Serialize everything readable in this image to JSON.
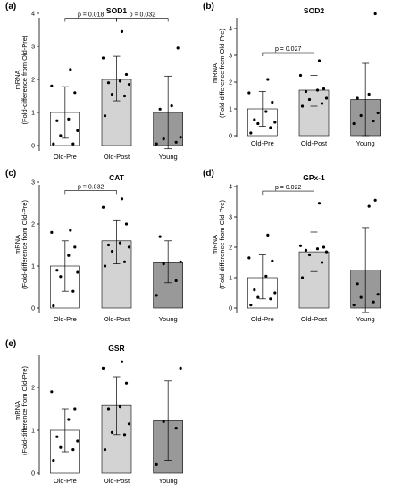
{
  "figure": {
    "ylabel_line1": "mRNA",
    "ylabel_line2": "(Fold-difference from Old-Pre)"
  },
  "chart_data": [
    {
      "type": "bar",
      "panel": "(a)",
      "title": "SOD1",
      "categories": [
        "Old-Pre",
        "Old-Post",
        "Young"
      ],
      "ylim": [
        0,
        4
      ],
      "yticks": [
        0,
        1,
        2,
        3,
        4
      ],
      "bars": [
        {
          "category": "Old-Pre",
          "mean": 1.0,
          "sd_low": 0.22,
          "sd_high": 1.78,
          "points": [
            0.05,
            0.05,
            0.3,
            0.45,
            0.75,
            0.8,
            1.6,
            1.8,
            2.3
          ],
          "fill": "#ffffff"
        },
        {
          "category": "Old-Post",
          "mean": 2.0,
          "sd_low": 1.35,
          "sd_high": 2.7,
          "points": [
            0.9,
            1.5,
            1.55,
            1.85,
            1.9,
            1.95,
            2.15,
            2.65,
            3.45
          ],
          "fill": "#d3d3d3"
        },
        {
          "category": "Young",
          "mean": 1.0,
          "sd_low": -0.1,
          "sd_high": 2.1,
          "points": [
            0.05,
            0.1,
            0.2,
            0.25,
            1.1,
            1.2,
            2.95
          ],
          "fill": "#999999"
        }
      ],
      "annotations": [
        {
          "text": "p = 0.018",
          "from": "Old-Pre",
          "to": "Old-Post",
          "y": 3.85
        },
        {
          "text": "p = 0.032",
          "from": "Old-Post",
          "to": "Young",
          "y": 3.85
        }
      ]
    },
    {
      "type": "bar",
      "panel": "(b)",
      "title": "SOD2",
      "categories": [
        "Old-Pre",
        "Old-Post",
        "Young"
      ],
      "ylim": [
        0,
        4.5
      ],
      "yticks": [
        0,
        1,
        2,
        3,
        4
      ],
      "bars": [
        {
          "category": "Old-Pre",
          "mean": 1.0,
          "sd_low": 0.35,
          "sd_high": 1.65,
          "points": [
            0.1,
            0.3,
            0.45,
            0.5,
            0.6,
            0.9,
            1.25,
            1.6,
            2.1
          ],
          "fill": "#ffffff"
        },
        {
          "category": "Old-Post",
          "mean": 1.7,
          "sd_low": 1.1,
          "sd_high": 2.25,
          "points": [
            1.1,
            1.2,
            1.35,
            1.4,
            1.65,
            1.7,
            1.75,
            2.25,
            2.8
          ],
          "fill": "#d3d3d3"
        },
        {
          "category": "Young",
          "mean": 1.35,
          "sd_low": 0.0,
          "sd_high": 2.7,
          "points": [
            0.45,
            0.55,
            0.75,
            0.85,
            1.4,
            1.55,
            4.55
          ],
          "fill": "#999999"
        }
      ],
      "annotations": [
        {
          "text": "p = 0.027",
          "from": "Old-Pre",
          "to": "Old-Post",
          "y": 3.1
        }
      ]
    },
    {
      "type": "bar",
      "panel": "(c)",
      "title": "CAT",
      "categories": [
        "Old-Pre",
        "Old-Post",
        "Young"
      ],
      "ylim": [
        0,
        3
      ],
      "yticks": [
        0,
        1,
        2,
        3
      ],
      "bars": [
        {
          "category": "Old-Pre",
          "mean": 1.0,
          "sd_low": 0.4,
          "sd_high": 1.6,
          "points": [
            0.05,
            0.4,
            0.75,
            0.85,
            0.9,
            1.25,
            1.45,
            1.8,
            1.85
          ],
          "fill": "#ffffff"
        },
        {
          "category": "Old-Post",
          "mean": 1.6,
          "sd_low": 1.05,
          "sd_high": 2.1,
          "points": [
            1.0,
            1.1,
            1.35,
            1.45,
            1.5,
            1.55,
            2.0,
            2.4,
            2.6
          ],
          "fill": "#d3d3d3"
        },
        {
          "category": "Young",
          "mean": 1.08,
          "sd_low": 0.6,
          "sd_high": 1.6,
          "points": [
            0.3,
            0.65,
            1.05,
            1.1,
            1.7
          ],
          "fill": "#999999"
        }
      ],
      "annotations": [
        {
          "text": "p = 0.032",
          "from": "Old-Pre",
          "to": "Old-Post",
          "y": 2.8
        }
      ]
    },
    {
      "type": "bar",
      "panel": "(d)",
      "title": "GPx-1",
      "categories": [
        "Old-Pre",
        "Old-Post",
        "Young"
      ],
      "ylim": [
        0,
        4.2
      ],
      "yticks": [
        0,
        1,
        2,
        3,
        4
      ],
      "bars": [
        {
          "category": "Old-Pre",
          "mean": 1.0,
          "sd_low": 0.3,
          "sd_high": 1.75,
          "points": [
            0.1,
            0.3,
            0.35,
            0.5,
            0.6,
            1.05,
            1.55,
            1.65,
            2.4
          ],
          "fill": "#ffffff"
        },
        {
          "category": "Old-Post",
          "mean": 1.85,
          "sd_low": 1.2,
          "sd_high": 2.5,
          "points": [
            1.0,
            1.5,
            1.75,
            1.85,
            1.9,
            1.95,
            2.0,
            2.05,
            3.45
          ],
          "fill": "#d3d3d3"
        },
        {
          "category": "Young",
          "mean": 1.25,
          "sd_low": -0.15,
          "sd_high": 2.65,
          "points": [
            0.1,
            0.2,
            0.35,
            0.45,
            0.8,
            3.35,
            3.55
          ],
          "fill": "#999999"
        }
      ],
      "annotations": [
        {
          "text": "p = 0.022",
          "from": "Old-Pre",
          "to": "Old-Post",
          "y": 3.85
        }
      ]
    },
    {
      "type": "bar",
      "panel": "(e)",
      "title": "GSR",
      "categories": [
        "Old-Pre",
        "Old-Post",
        "Young"
      ],
      "ylim": [
        0,
        2.9
      ],
      "yticks": [
        0,
        1,
        2
      ],
      "bars": [
        {
          "category": "Old-Pre",
          "mean": 1.0,
          "sd_low": 0.5,
          "sd_high": 1.5,
          "points": [
            0.3,
            0.55,
            0.6,
            0.75,
            0.85,
            1.25,
            1.5,
            1.9
          ],
          "fill": "#ffffff"
        },
        {
          "category": "Old-Post",
          "mean": 1.58,
          "sd_low": 0.9,
          "sd_high": 2.25,
          "points": [
            0.55,
            0.9,
            0.95,
            1.15,
            1.5,
            1.55,
            2.1,
            2.45,
            2.6
          ],
          "fill": "#d3d3d3"
        },
        {
          "category": "Young",
          "mean": 1.22,
          "sd_low": 0.3,
          "sd_high": 2.15,
          "points": [
            0.2,
            1.05,
            1.2,
            2.45
          ],
          "fill": "#999999"
        }
      ],
      "annotations": []
    }
  ]
}
